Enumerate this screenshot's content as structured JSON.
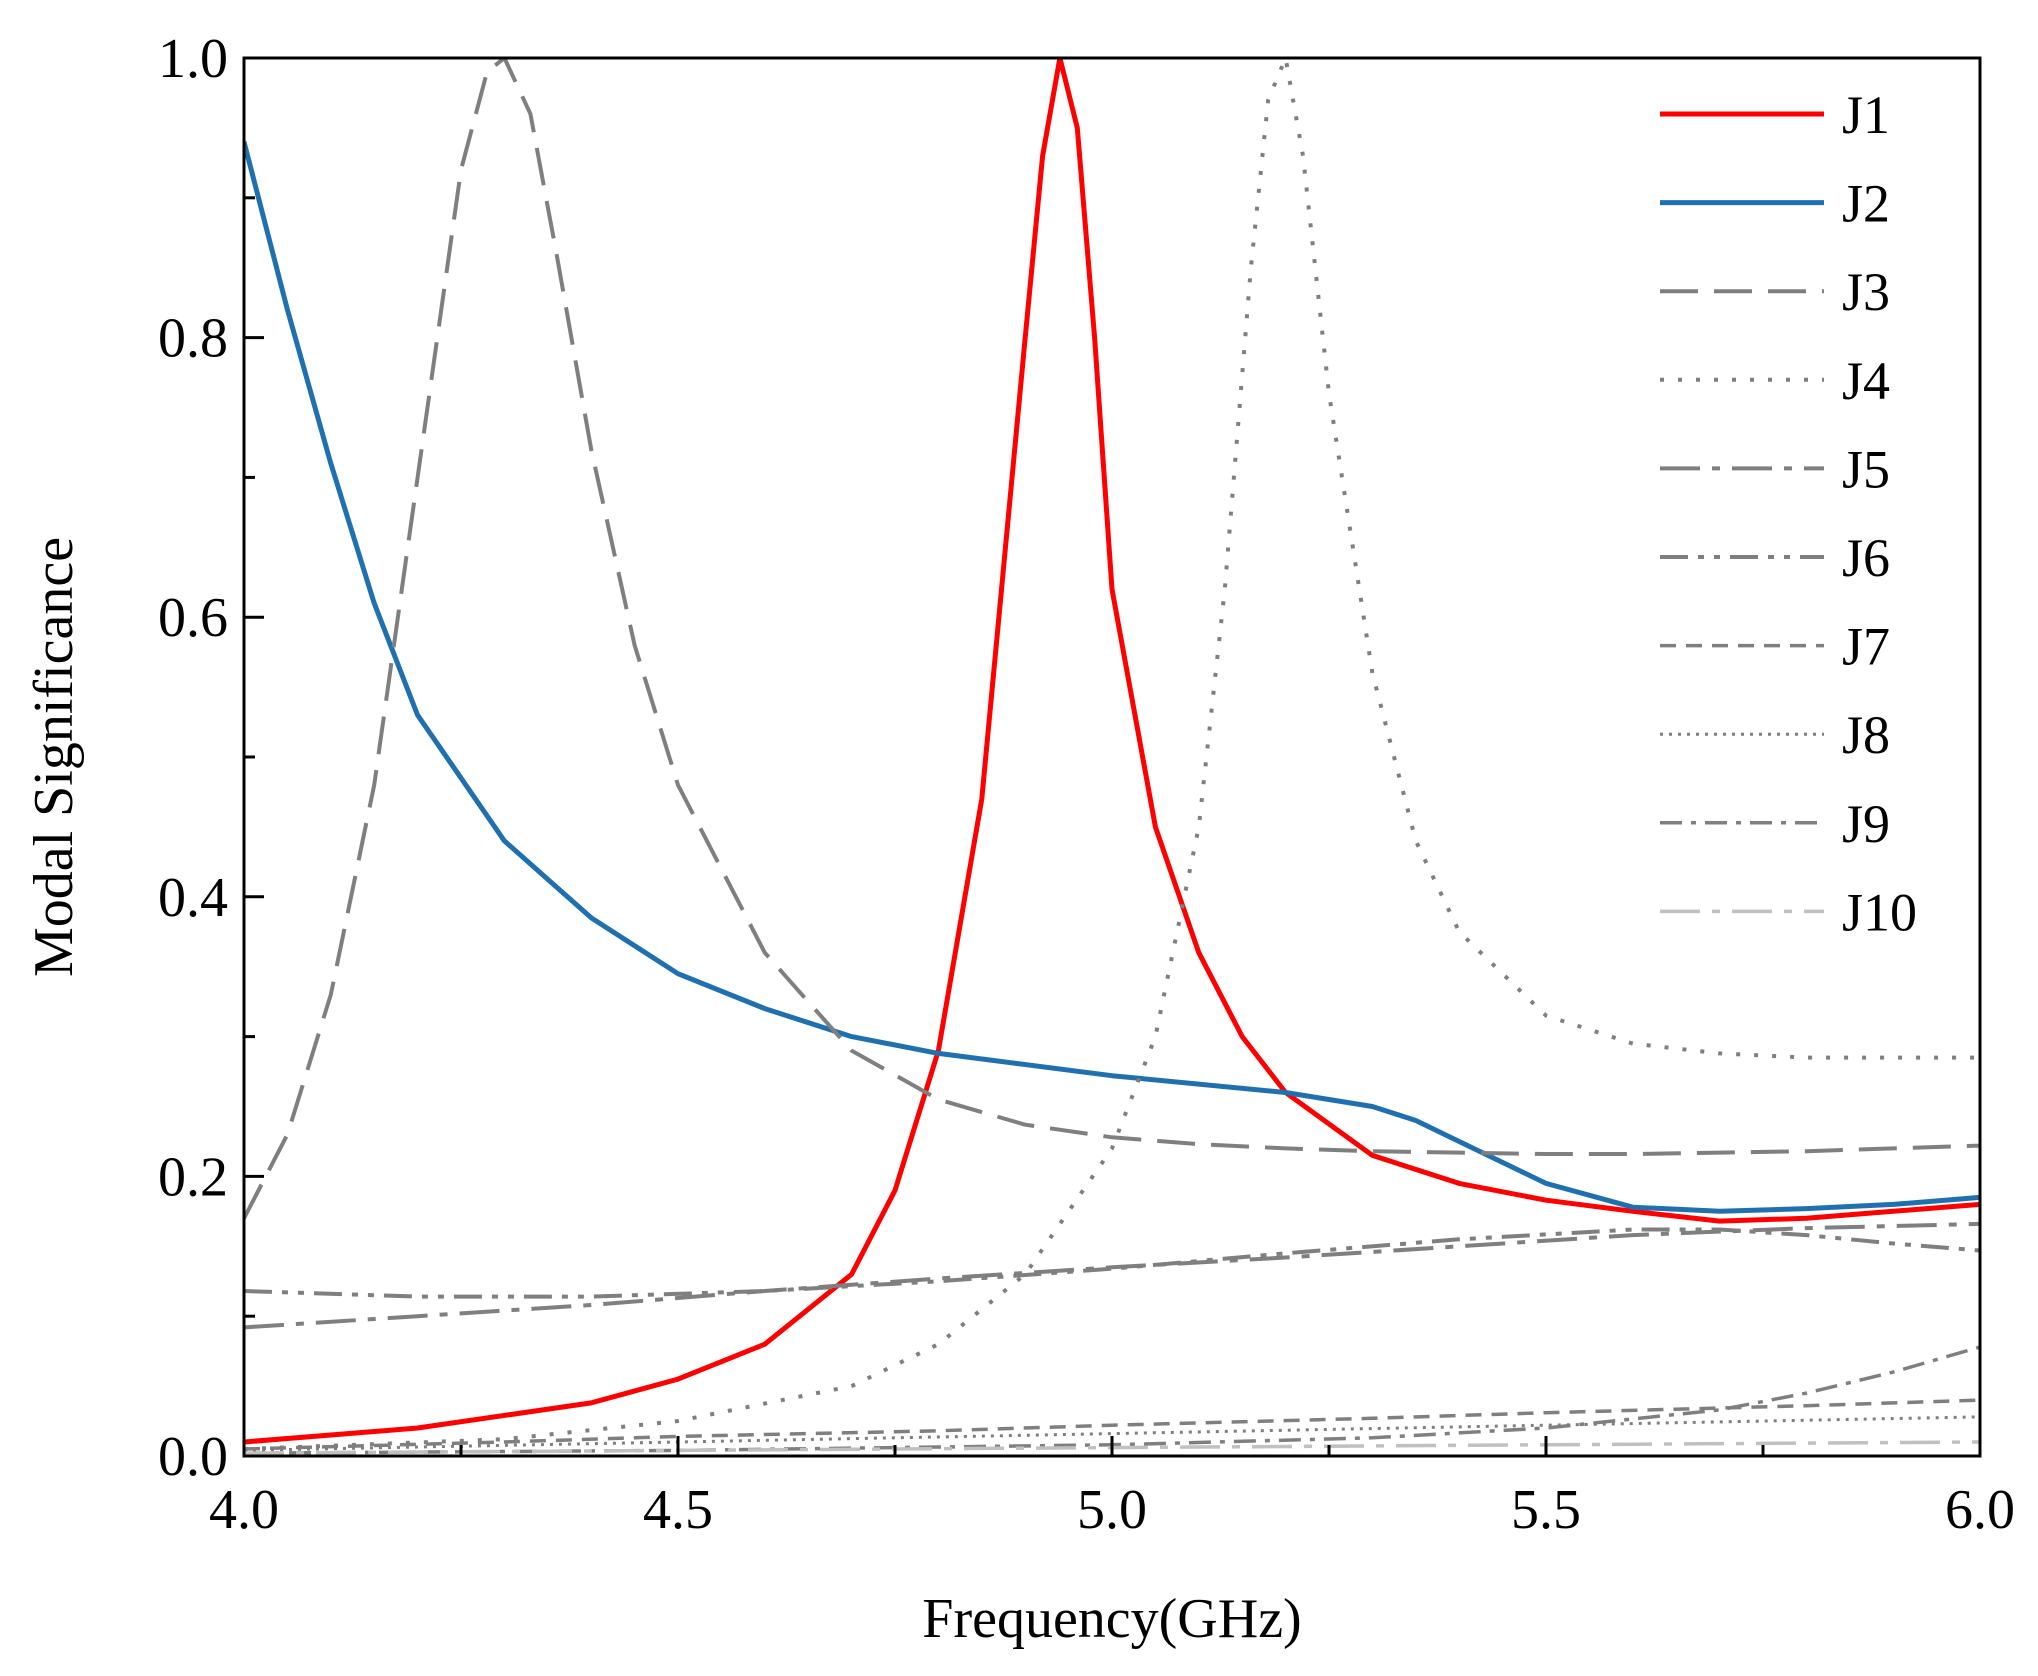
{
  "chart_data": {
    "type": "line",
    "title": "",
    "xlabel": "Frequency(GHz)",
    "ylabel": "Modal Significance",
    "xlim": [
      4.0,
      6.0
    ],
    "ylim": [
      0.0,
      1.0
    ],
    "xticks": [
      4.0,
      4.5,
      5.0,
      5.5,
      6.0
    ],
    "xtick_labels": [
      "4.0",
      "4.5",
      "5.0",
      "5.5",
      "6.0"
    ],
    "xminor_step": 0.25,
    "yticks": [
      0.0,
      0.2,
      0.4,
      0.6,
      0.8,
      1.0
    ],
    "ytick_labels": [
      "0.0",
      "0.2",
      "0.4",
      "0.6",
      "0.8",
      "1.0"
    ],
    "yminor_step": 0.1,
    "grid": false,
    "legend_position": "top-right",
    "series": [
      {
        "name": "J1",
        "color": "#ff0000",
        "style": "solid",
        "x": [
          4.0,
          4.2,
          4.4,
          4.5,
          4.6,
          4.7,
          4.75,
          4.8,
          4.85,
          4.9,
          4.92,
          4.94,
          4.96,
          4.98,
          5.0,
          5.05,
          5.1,
          5.15,
          5.2,
          5.3,
          5.4,
          5.5,
          5.6,
          5.7,
          5.8,
          5.9,
          6.0
        ],
        "y": [
          0.01,
          0.02,
          0.038,
          0.055,
          0.08,
          0.13,
          0.19,
          0.29,
          0.47,
          0.8,
          0.93,
          1.0,
          0.95,
          0.8,
          0.62,
          0.45,
          0.36,
          0.3,
          0.26,
          0.215,
          0.195,
          0.183,
          0.175,
          0.168,
          0.17,
          0.175,
          0.18
        ]
      },
      {
        "name": "J2",
        "color": "#1f70b0",
        "style": "solid",
        "x": [
          4.0,
          4.05,
          4.1,
          4.15,
          4.2,
          4.3,
          4.4,
          4.5,
          4.6,
          4.7,
          4.8,
          5.0,
          5.2,
          5.3,
          5.35,
          5.4,
          5.5,
          5.6,
          5.7,
          5.8,
          5.9,
          6.0
        ],
        "y": [
          0.94,
          0.82,
          0.71,
          0.61,
          0.53,
          0.44,
          0.385,
          0.345,
          0.32,
          0.3,
          0.288,
          0.272,
          0.26,
          0.25,
          0.24,
          0.225,
          0.195,
          0.178,
          0.175,
          0.177,
          0.18,
          0.185
        ]
      },
      {
        "name": "J3",
        "color": "#7f7f7f",
        "style": "dash",
        "x": [
          4.0,
          4.05,
          4.1,
          4.15,
          4.2,
          4.25,
          4.28,
          4.3,
          4.33,
          4.36,
          4.4,
          4.45,
          4.5,
          4.6,
          4.7,
          4.8,
          4.9,
          5.0,
          5.1,
          5.2,
          5.3,
          5.4,
          5.5,
          5.6,
          5.7,
          5.8,
          5.9,
          6.0
        ],
        "y": [
          0.17,
          0.23,
          0.33,
          0.48,
          0.7,
          0.92,
          0.99,
          1.0,
          0.96,
          0.86,
          0.72,
          0.58,
          0.48,
          0.36,
          0.29,
          0.255,
          0.237,
          0.228,
          0.223,
          0.22,
          0.218,
          0.217,
          0.216,
          0.216,
          0.217,
          0.218,
          0.22,
          0.222
        ]
      },
      {
        "name": "J4",
        "color": "#7f7f7f",
        "style": "dot",
        "x": [
          4.0,
          4.3,
          4.5,
          4.7,
          4.8,
          4.9,
          5.0,
          5.05,
          5.1,
          5.13,
          5.16,
          5.18,
          5.2,
          5.22,
          5.25,
          5.3,
          5.35,
          5.4,
          5.5,
          5.6,
          5.7,
          5.8,
          5.9,
          6.0
        ],
        "y": [
          0.005,
          0.012,
          0.025,
          0.05,
          0.08,
          0.13,
          0.22,
          0.3,
          0.45,
          0.62,
          0.85,
          0.97,
          1.0,
          0.93,
          0.76,
          0.56,
          0.44,
          0.375,
          0.315,
          0.295,
          0.288,
          0.285,
          0.285,
          0.285
        ]
      },
      {
        "name": "J5",
        "color": "#7f7f7f",
        "style": "longdashdot",
        "x": [
          4.0,
          4.2,
          4.4,
          4.6,
          4.8,
          5.0,
          5.2,
          5.4,
          5.6,
          5.8,
          6.0
        ],
        "y": [
          0.092,
          0.1,
          0.108,
          0.118,
          0.127,
          0.135,
          0.142,
          0.15,
          0.158,
          0.163,
          0.166
        ]
      },
      {
        "name": "J6",
        "color": "#7f7f7f",
        "style": "dashdotdot",
        "x": [
          4.0,
          4.2,
          4.4,
          4.6,
          4.8,
          5.0,
          5.2,
          5.4,
          5.6,
          5.7,
          5.8,
          5.9,
          6.0
        ],
        "y": [
          0.118,
          0.114,
          0.114,
          0.118,
          0.125,
          0.134,
          0.145,
          0.155,
          0.162,
          0.162,
          0.158,
          0.152,
          0.147
        ]
      },
      {
        "name": "J7",
        "color": "#7f7f7f",
        "style": "shortdash",
        "x": [
          4.0,
          4.3,
          4.5,
          4.8,
          5.0,
          5.3,
          5.5,
          5.8,
          6.0
        ],
        "y": [
          0.005,
          0.01,
          0.014,
          0.018,
          0.022,
          0.027,
          0.031,
          0.036,
          0.04
        ]
      },
      {
        "name": "J8",
        "color": "#7f7f7f",
        "style": "shortdot",
        "x": [
          4.0,
          4.5,
          5.0,
          5.5,
          6.0
        ],
        "y": [
          0.004,
          0.01,
          0.016,
          0.022,
          0.028
        ]
      },
      {
        "name": "J9",
        "color": "#7f7f7f",
        "style": "dashdot",
        "x": [
          4.0,
          4.5,
          5.0,
          5.3,
          5.5,
          5.7,
          5.8,
          5.9,
          6.0
        ],
        "y": [
          0.002,
          0.004,
          0.008,
          0.013,
          0.02,
          0.033,
          0.045,
          0.06,
          0.078
        ]
      },
      {
        "name": "J10",
        "color": "#c0c0c0",
        "style": "longdashdot",
        "x": [
          4.0,
          4.5,
          5.0,
          5.5,
          6.0
        ],
        "y": [
          0.002,
          0.004,
          0.006,
          0.008,
          0.01
        ]
      }
    ]
  }
}
